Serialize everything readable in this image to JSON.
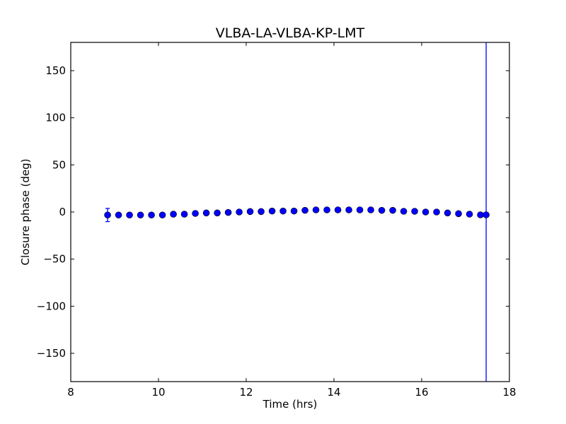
{
  "chart_data": {
    "type": "scatter",
    "title": "VLBA-LA-VLBA-KP-LMT",
    "xlabel": "Time (hrs)",
    "ylabel": "Closure phase (deg)",
    "xlim": [
      8,
      18
    ],
    "ylim": [
      -180,
      180
    ],
    "xticks": [
      8,
      10,
      12,
      14,
      16,
      18
    ],
    "yticks": [
      -150,
      -100,
      -50,
      0,
      50,
      100,
      150
    ],
    "xtick_labels": [
      "8",
      "10",
      "12",
      "14",
      "16",
      "18"
    ],
    "ytick_labels": [
      "−150",
      "−100",
      "−50",
      "0",
      "50",
      "100",
      "150"
    ],
    "grid": false,
    "marker_color": "#0000ff",
    "series": [
      {
        "name": "closure phase",
        "x": [
          8.84,
          9.09,
          9.34,
          9.59,
          9.84,
          10.09,
          10.34,
          10.59,
          10.84,
          11.09,
          11.34,
          11.59,
          11.84,
          12.09,
          12.34,
          12.59,
          12.84,
          13.09,
          13.34,
          13.59,
          13.84,
          14.09,
          14.34,
          14.59,
          14.84,
          15.09,
          15.34,
          15.59,
          15.84,
          16.09,
          16.34,
          16.59,
          16.84,
          17.09,
          17.34,
          17.47
        ],
        "y": [
          -3.2,
          -3.2,
          -3.2,
          -3.2,
          -3.2,
          -3.2,
          -2.3,
          -2.3,
          -1.5,
          -1,
          -1,
          -0.5,
          0,
          0.5,
          0.5,
          1,
          1,
          1,
          1.75,
          2.25,
          2.25,
          2.25,
          2.25,
          2.25,
          2.25,
          1.75,
          1.75,
          0.75,
          0.75,
          0,
          0,
          -1,
          -1.75,
          -2.25,
          -3,
          -3
        ],
        "yerr": [
          7,
          0,
          0,
          0,
          0,
          0,
          0,
          0,
          0,
          0,
          0,
          0,
          0,
          0,
          0,
          0,
          0,
          0,
          0,
          0,
          0,
          0,
          0,
          0,
          0,
          0,
          0,
          0,
          0,
          0,
          0,
          0,
          0,
          0,
          0,
          500
        ]
      }
    ]
  }
}
